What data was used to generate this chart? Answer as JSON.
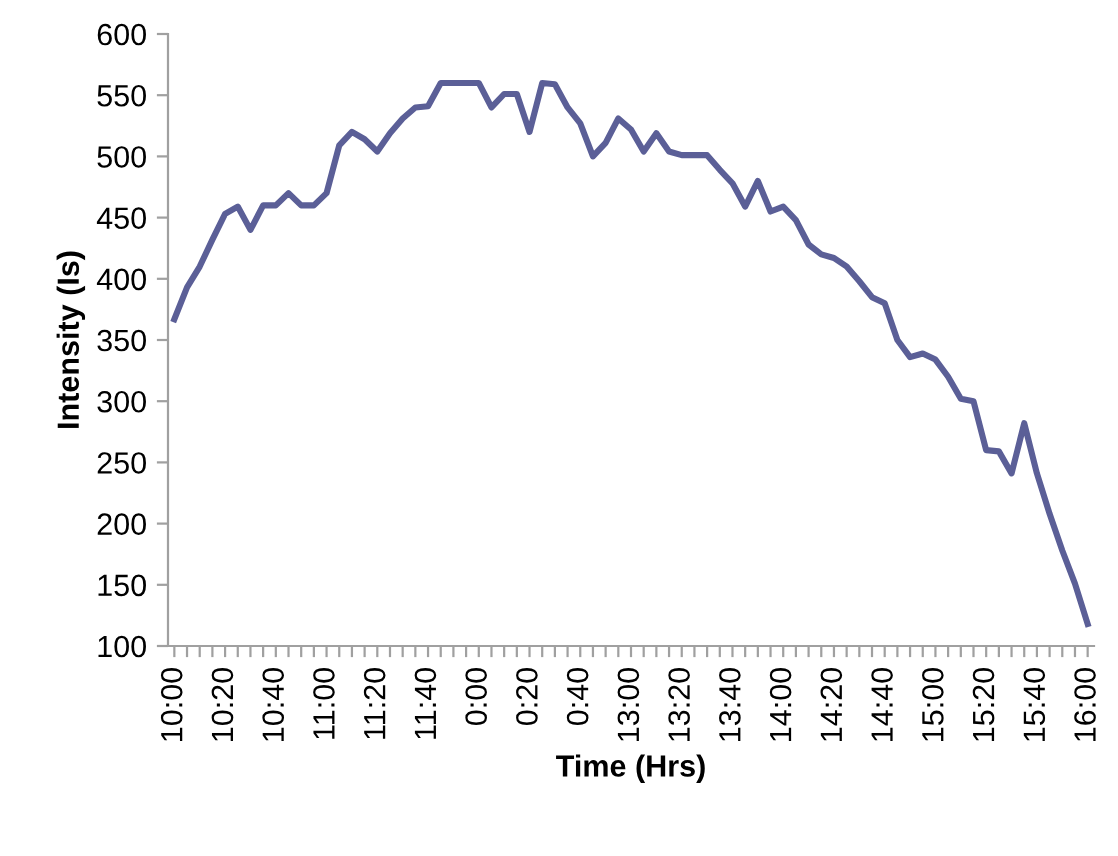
{
  "chart_data": {
    "type": "line",
    "xlabel": "Time (Hrs)",
    "ylabel": "Intensity (Is)",
    "categories": [
      "10:00",
      null,
      null,
      null,
      "10:20",
      null,
      null,
      null,
      "10:40",
      null,
      null,
      null,
      "11:00",
      null,
      null,
      null,
      "11:20",
      null,
      null,
      null,
      "11:40",
      null,
      null,
      null,
      "0:00",
      null,
      null,
      null,
      "0:20",
      null,
      null,
      null,
      "0:40",
      null,
      null,
      null,
      "13:00",
      null,
      null,
      null,
      "13:20",
      null,
      null,
      null,
      "13:40",
      null,
      null,
      null,
      "14:00",
      null,
      null,
      null,
      "14:20",
      null,
      null,
      null,
      "14:40",
      null,
      null,
      null,
      "15:00",
      null,
      null,
      null,
      "15:20",
      null,
      null,
      null,
      "15:40",
      null,
      null,
      null,
      "16:00"
    ],
    "series": [
      {
        "color": "#5b5f97",
        "values": [
          367,
          393,
          410,
          432,
          453,
          459,
          440,
          460,
          460,
          470,
          460,
          460,
          470,
          509,
          520,
          514,
          504,
          519,
          531,
          540,
          541,
          560,
          560,
          560,
          560,
          540,
          551,
          551,
          520,
          560,
          559,
          540,
          527,
          500,
          511,
          531,
          522,
          504,
          519,
          504,
          501,
          501,
          501,
          489,
          478,
          459,
          480,
          455,
          459,
          448,
          428,
          420,
          417,
          410,
          398,
          385,
          380,
          350,
          336,
          339,
          334,
          320,
          302,
          300,
          260,
          259,
          241,
          282,
          241,
          208,
          178,
          151,
          118
        ]
      }
    ],
    "ylim": [
      100,
      600
    ],
    "yticks": [
      100,
      150,
      200,
      250,
      300,
      350,
      400,
      450,
      500,
      550,
      600
    ],
    "grid": false,
    "marker": "none",
    "line_style": "solid"
  }
}
